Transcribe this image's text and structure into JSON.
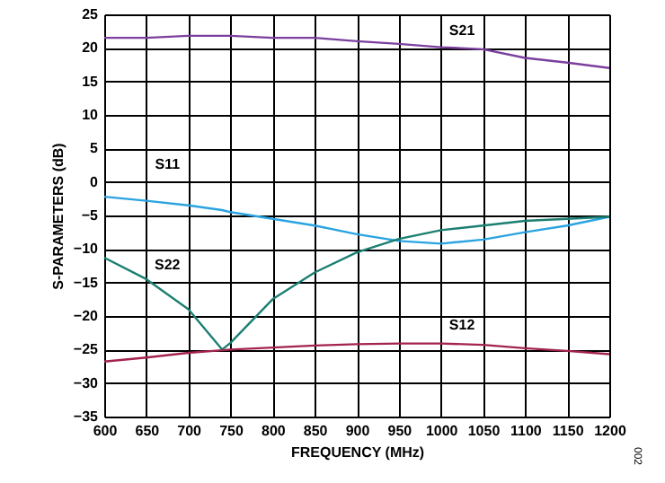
{
  "chart_data": {
    "type": "line",
    "xlabel": "FREQUENCY (MHz)",
    "ylabel": "S-PARAMETERS (dB)",
    "x": [
      600,
      650,
      700,
      740,
      750,
      800,
      850,
      900,
      950,
      1000,
      1050,
      1100,
      1150,
      1200
    ],
    "series": [
      {
        "name": "S21",
        "color": "#7b3f9e",
        "values": [
          21.5,
          21.5,
          21.8,
          21.8,
          21.8,
          21.5,
          21.5,
          21.0,
          20.6,
          20.1,
          19.8,
          18.5,
          17.8,
          17.0
        ]
      },
      {
        "name": "S11",
        "color": "#2aa4e0",
        "values": [
          -2.2,
          -2.8,
          -3.5,
          -4.2,
          -4.5,
          -5.5,
          -6.5,
          -7.8,
          -8.8,
          -9.2,
          -8.6,
          -7.5,
          -6.5,
          -5.2
        ]
      },
      {
        "name": "S22",
        "color": "#1b7f72",
        "values": [
          -11.3,
          -14.5,
          -19.0,
          -25.0,
          -24.0,
          -17.5,
          -13.5,
          -10.5,
          -8.5,
          -7.2,
          -6.5,
          -5.8,
          -5.5,
          -5.2
        ]
      },
      {
        "name": "S12",
        "color": "#a3234f",
        "values": [
          -26.8,
          -26.2,
          -25.5,
          -25.1,
          -25.0,
          -24.7,
          -24.4,
          -24.2,
          -24.1,
          -24.1,
          -24.3,
          -24.8,
          -25.2,
          -25.7
        ]
      }
    ],
    "xlim": [
      600,
      1200
    ],
    "xticks": [
      600,
      650,
      700,
      750,
      800,
      850,
      900,
      950,
      1000,
      1050,
      1100,
      1150,
      1200
    ],
    "ylim": [
      -35,
      25
    ],
    "yticks": [
      -35,
      -30,
      -25,
      -20,
      -15,
      -10,
      -5,
      0,
      5,
      10,
      15,
      20,
      25
    ],
    "grid": true,
    "marker": "none",
    "line_style": "solid",
    "annotations": [
      "002"
    ]
  }
}
